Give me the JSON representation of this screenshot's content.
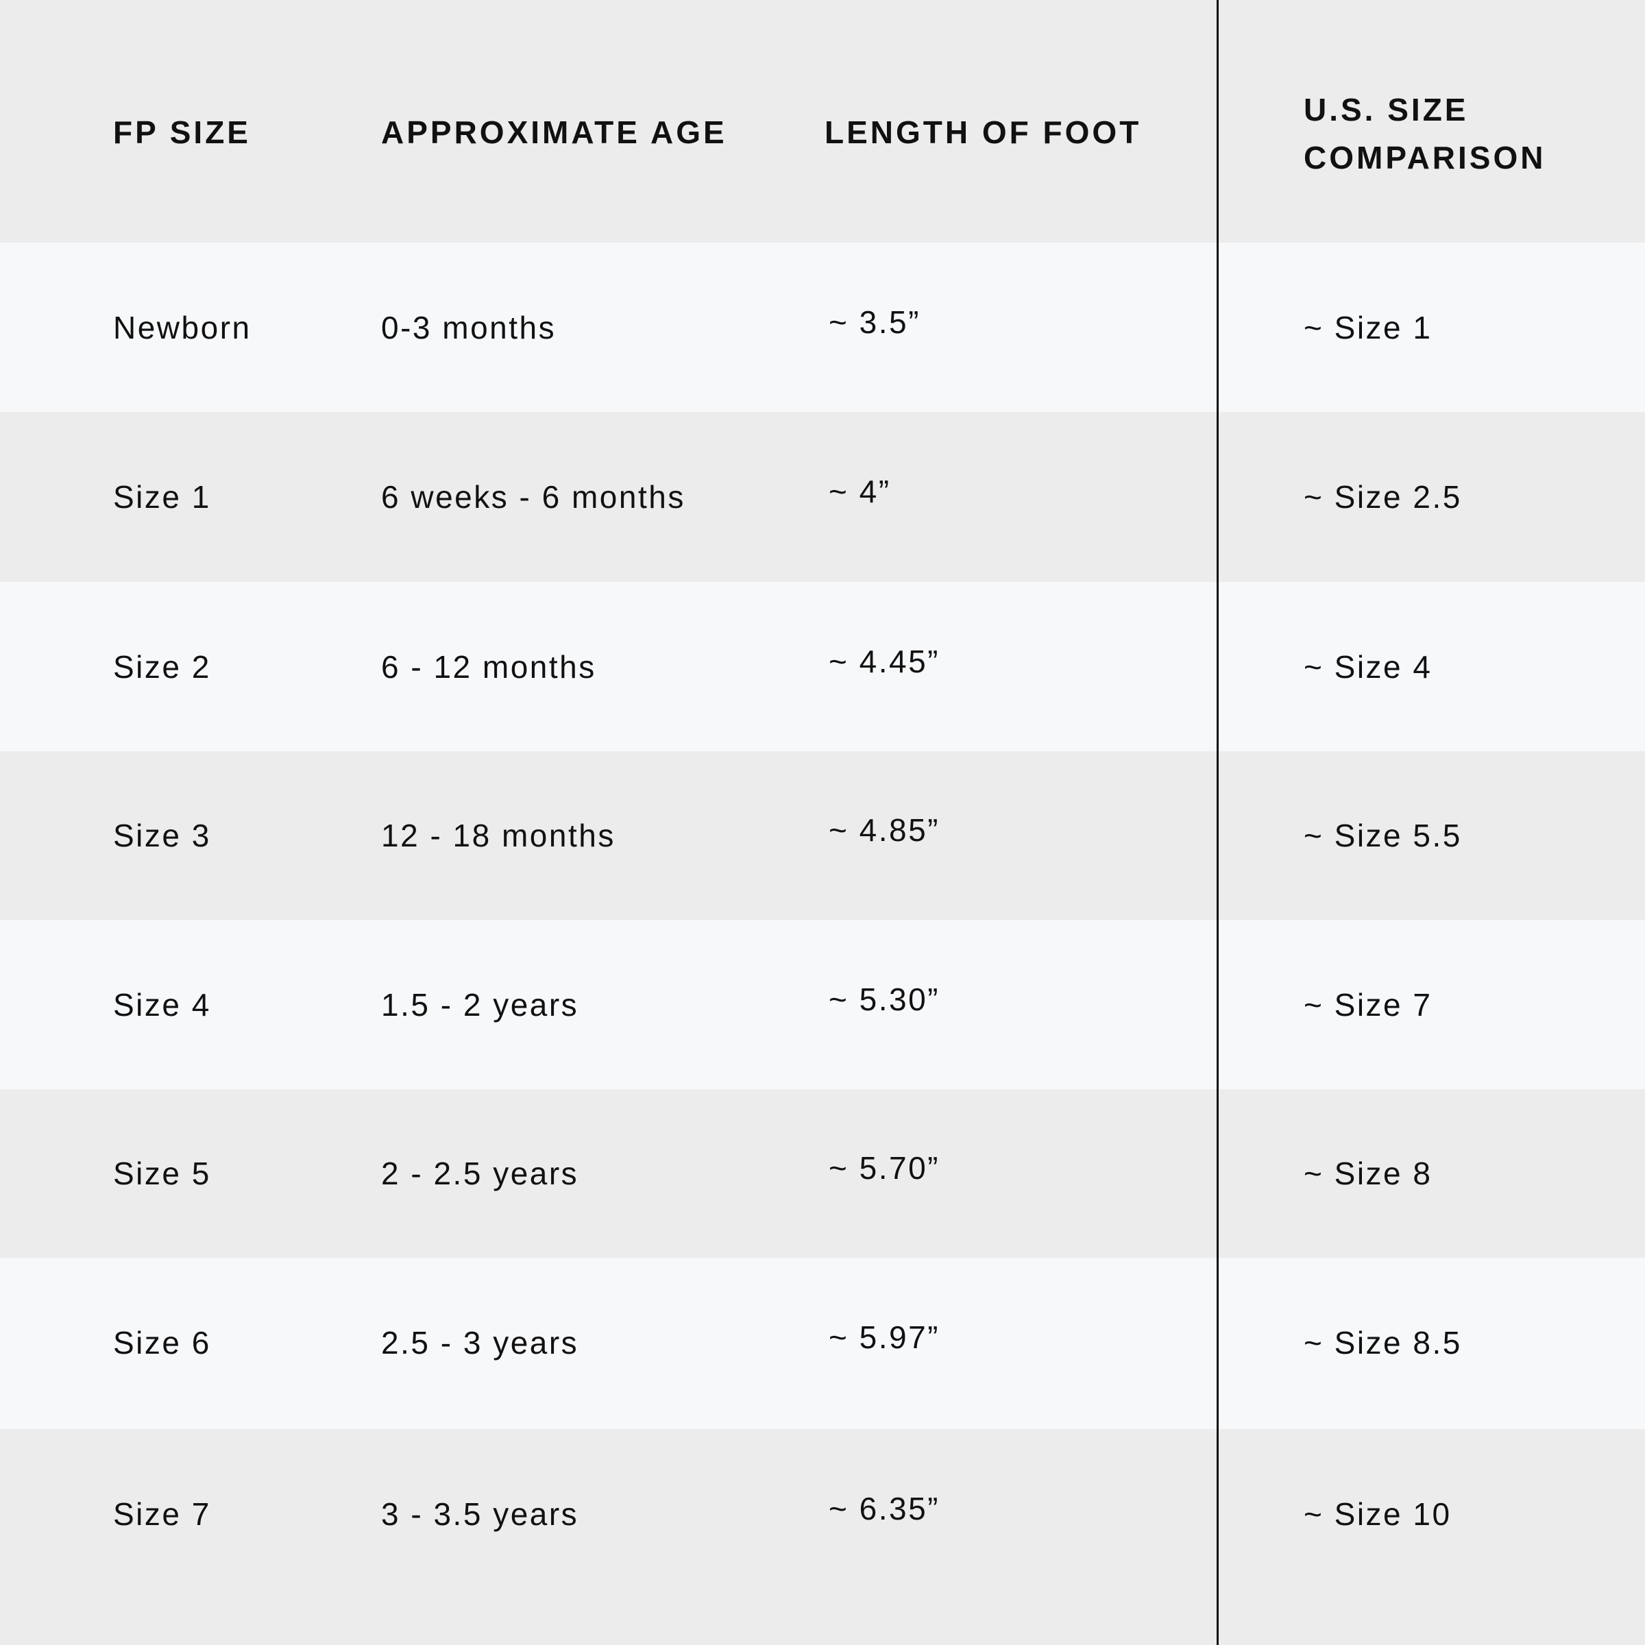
{
  "colors": {
    "header_bg": "#ececec",
    "row_light": "#f7f8fa",
    "row_dark": "#ececec",
    "divider": "#111111",
    "text": "#111111"
  },
  "table": {
    "headers": [
      "FP SIZE",
      "APPROXIMATE AGE",
      "LENGTH OF FOOT",
      "U.S. SIZE COMPARISON"
    ],
    "header_lines": {
      "us_line1": "U.S. SIZE",
      "us_line2": "COMPARISON"
    },
    "rows": [
      [
        "Newborn",
        "0-3 months",
        "~ 3.5”",
        "~ Size 1"
      ],
      [
        "Size 1",
        "6 weeks - 6 months",
        "~ 4”",
        "~ Size 2.5"
      ],
      [
        "Size 2",
        "6 - 12 months",
        "~ 4.45”",
        "~ Size 4"
      ],
      [
        "Size 3",
        "12 - 18 months",
        "~ 4.85”",
        "~ Size 5.5"
      ],
      [
        "Size 4",
        "1.5 - 2 years",
        "~ 5.30”",
        "~ Size 7"
      ],
      [
        "Size 5",
        "2 - 2.5 years",
        "~ 5.70”",
        "~ Size 8"
      ],
      [
        "Size 6",
        "2.5 - 3 years",
        "~ 5.97”",
        "~ Size 8.5"
      ],
      [
        "Size 7",
        "3 - 3.5 years",
        "~ 6.35”",
        "~ Size 10"
      ]
    ]
  }
}
